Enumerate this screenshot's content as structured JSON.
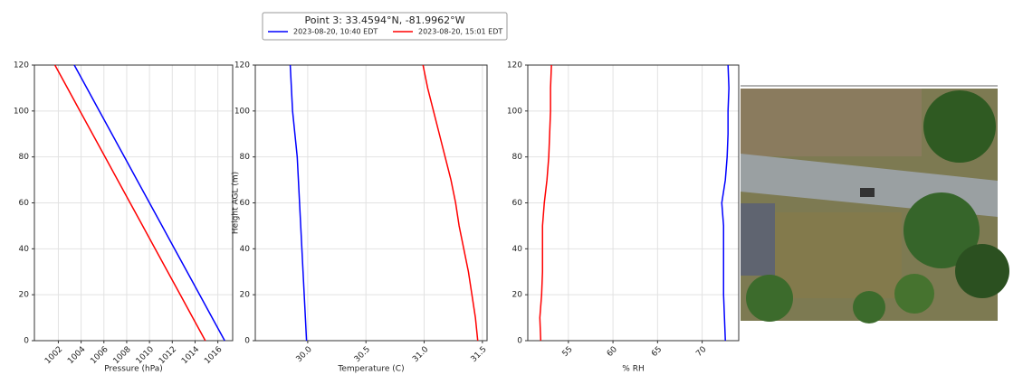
{
  "suptitle": "Point 3: 33.4594°N, -81.9962°W",
  "chart_data": [
    {
      "type": "line",
      "xlabel": "Pressure (hPa)",
      "xlim": [
        999.9,
        1017.3
      ],
      "xticks": [
        1002,
        1004,
        1006,
        1008,
        1010,
        1012,
        1014,
        1016
      ],
      "ylim": [
        0,
        120
      ],
      "yticks": [
        0,
        20,
        40,
        60,
        80,
        100,
        120
      ],
      "grid": true,
      "y": [
        0,
        10,
        20,
        30,
        40,
        50,
        60,
        70,
        80,
        90,
        100,
        110,
        120
      ],
      "series": [
        {
          "name": "2023-08-20, 10:40 EDT",
          "color": "#0000ff",
          "values": [
            1016.6,
            1015.5,
            1014.4,
            1013.3,
            1012.2,
            1011.1,
            1010.0,
            1008.9,
            1007.8,
            1006.7,
            1005.6,
            1004.5,
            1003.4
          ]
        },
        {
          "name": "2023-08-20, 15:01 EDT",
          "color": "#ff0000",
          "values": [
            1014.9,
            1013.8,
            1012.7,
            1011.6,
            1010.5,
            1009.4,
            1008.3,
            1007.2,
            1006.1,
            1005.0,
            1003.9,
            1002.8,
            1001.7
          ]
        }
      ]
    },
    {
      "type": "line",
      "xlabel": "Temperature (C)",
      "ylabel": "Height AGL (m)",
      "xlim": [
        29.55,
        31.54
      ],
      "xticks": [
        {
          "value": 30,
          "label": "30.0"
        },
        30.5,
        {
          "value": 31,
          "label": "31.0"
        },
        31.5
      ],
      "ylim": [
        0,
        120
      ],
      "yticks": [
        0,
        20,
        40,
        60,
        80,
        100,
        120
      ],
      "grid": true,
      "y": [
        0,
        10,
        20,
        30,
        40,
        50,
        60,
        70,
        80,
        90,
        100,
        110,
        120
      ],
      "series": [
        {
          "color": "#0000ff",
          "values": [
            29.99,
            29.98,
            29.97,
            29.96,
            29.95,
            29.94,
            29.93,
            29.92,
            29.91,
            29.89,
            29.87,
            29.86,
            29.85
          ]
        },
        {
          "color": "#ff0000",
          "values": [
            31.46,
            31.44,
            31.41,
            31.38,
            31.34,
            31.3,
            31.27,
            31.23,
            31.18,
            31.13,
            31.08,
            31.03,
            30.99
          ]
        }
      ]
    },
    {
      "type": "line",
      "xlabel": "% RH",
      "xlim": [
        50.45,
        74.1
      ],
      "xticks": [
        55,
        60,
        65,
        70
      ],
      "ylim": [
        0,
        120
      ],
      "yticks": [
        0,
        20,
        40,
        60,
        80,
        100,
        120
      ],
      "grid": true,
      "y": [
        0,
        10,
        20,
        30,
        40,
        50,
        60,
        70,
        80,
        90,
        100,
        110,
        120
      ],
      "series": [
        {
          "color": "#0000ff",
          "values": [
            72.6,
            72.5,
            72.4,
            72.4,
            72.4,
            72.4,
            72.2,
            72.6,
            72.8,
            72.9,
            72.9,
            73.0,
            72.9
          ]
        },
        {
          "color": "#ff0000",
          "values": [
            51.9,
            51.8,
            52.0,
            52.1,
            52.1,
            52.1,
            52.3,
            52.6,
            52.8,
            52.9,
            53.0,
            53.0,
            53.1
          ]
        }
      ]
    }
  ]
}
